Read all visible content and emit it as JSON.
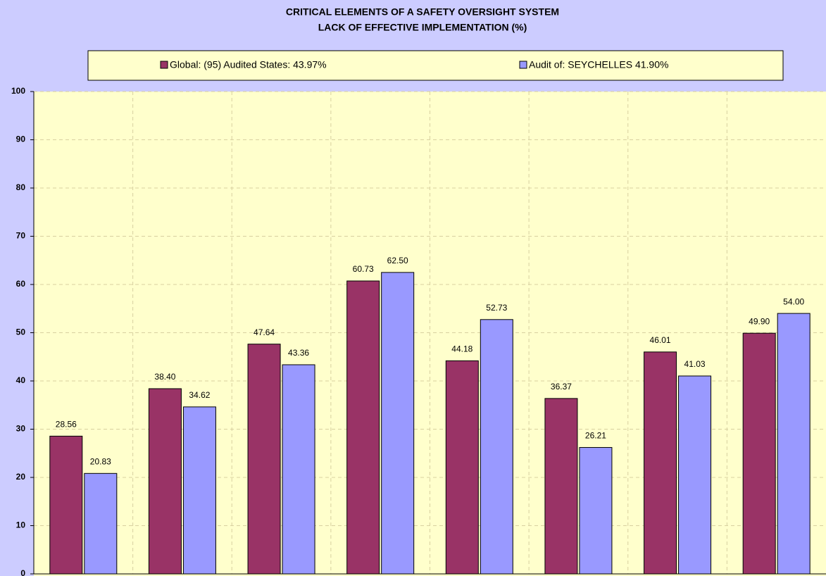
{
  "chart_data": {
    "type": "bar",
    "title": "CRITICAL ELEMENTS OF A SAFETY OVERSIGHT SYSTEM",
    "subtitle": "LACK OF EFFECTIVE IMPLEMENTATION (%)",
    "categories": [
      null,
      null,
      null,
      null,
      null,
      null,
      null,
      null
    ],
    "series": [
      {
        "name": "Global: (95) Audited States:  43.97%",
        "color": "#993366",
        "values": [
          28.56,
          38.4,
          47.64,
          60.73,
          44.18,
          36.37,
          46.01,
          49.9
        ],
        "value_labels": [
          "28.56",
          "38.40",
          "47.64",
          "60.73",
          "44.18",
          "36.37",
          "46.01",
          "49.90"
        ]
      },
      {
        "name": "Audit of: SEYCHELLES 41.90%",
        "color": "#9999ff",
        "values": [
          20.83,
          34.62,
          43.36,
          62.5,
          52.73,
          26.21,
          41.03,
          54.0
        ],
        "value_labels": [
          "20.83",
          "34.62",
          "43.36",
          "62.50",
          "52.73",
          "26.21",
          "41.03",
          "54.00"
        ]
      }
    ],
    "ylim": [
      0,
      100
    ],
    "yticks": [
      0,
      10,
      20,
      30,
      40,
      50,
      60,
      70,
      80,
      90,
      100
    ],
    "grid": true,
    "legend": "top"
  }
}
